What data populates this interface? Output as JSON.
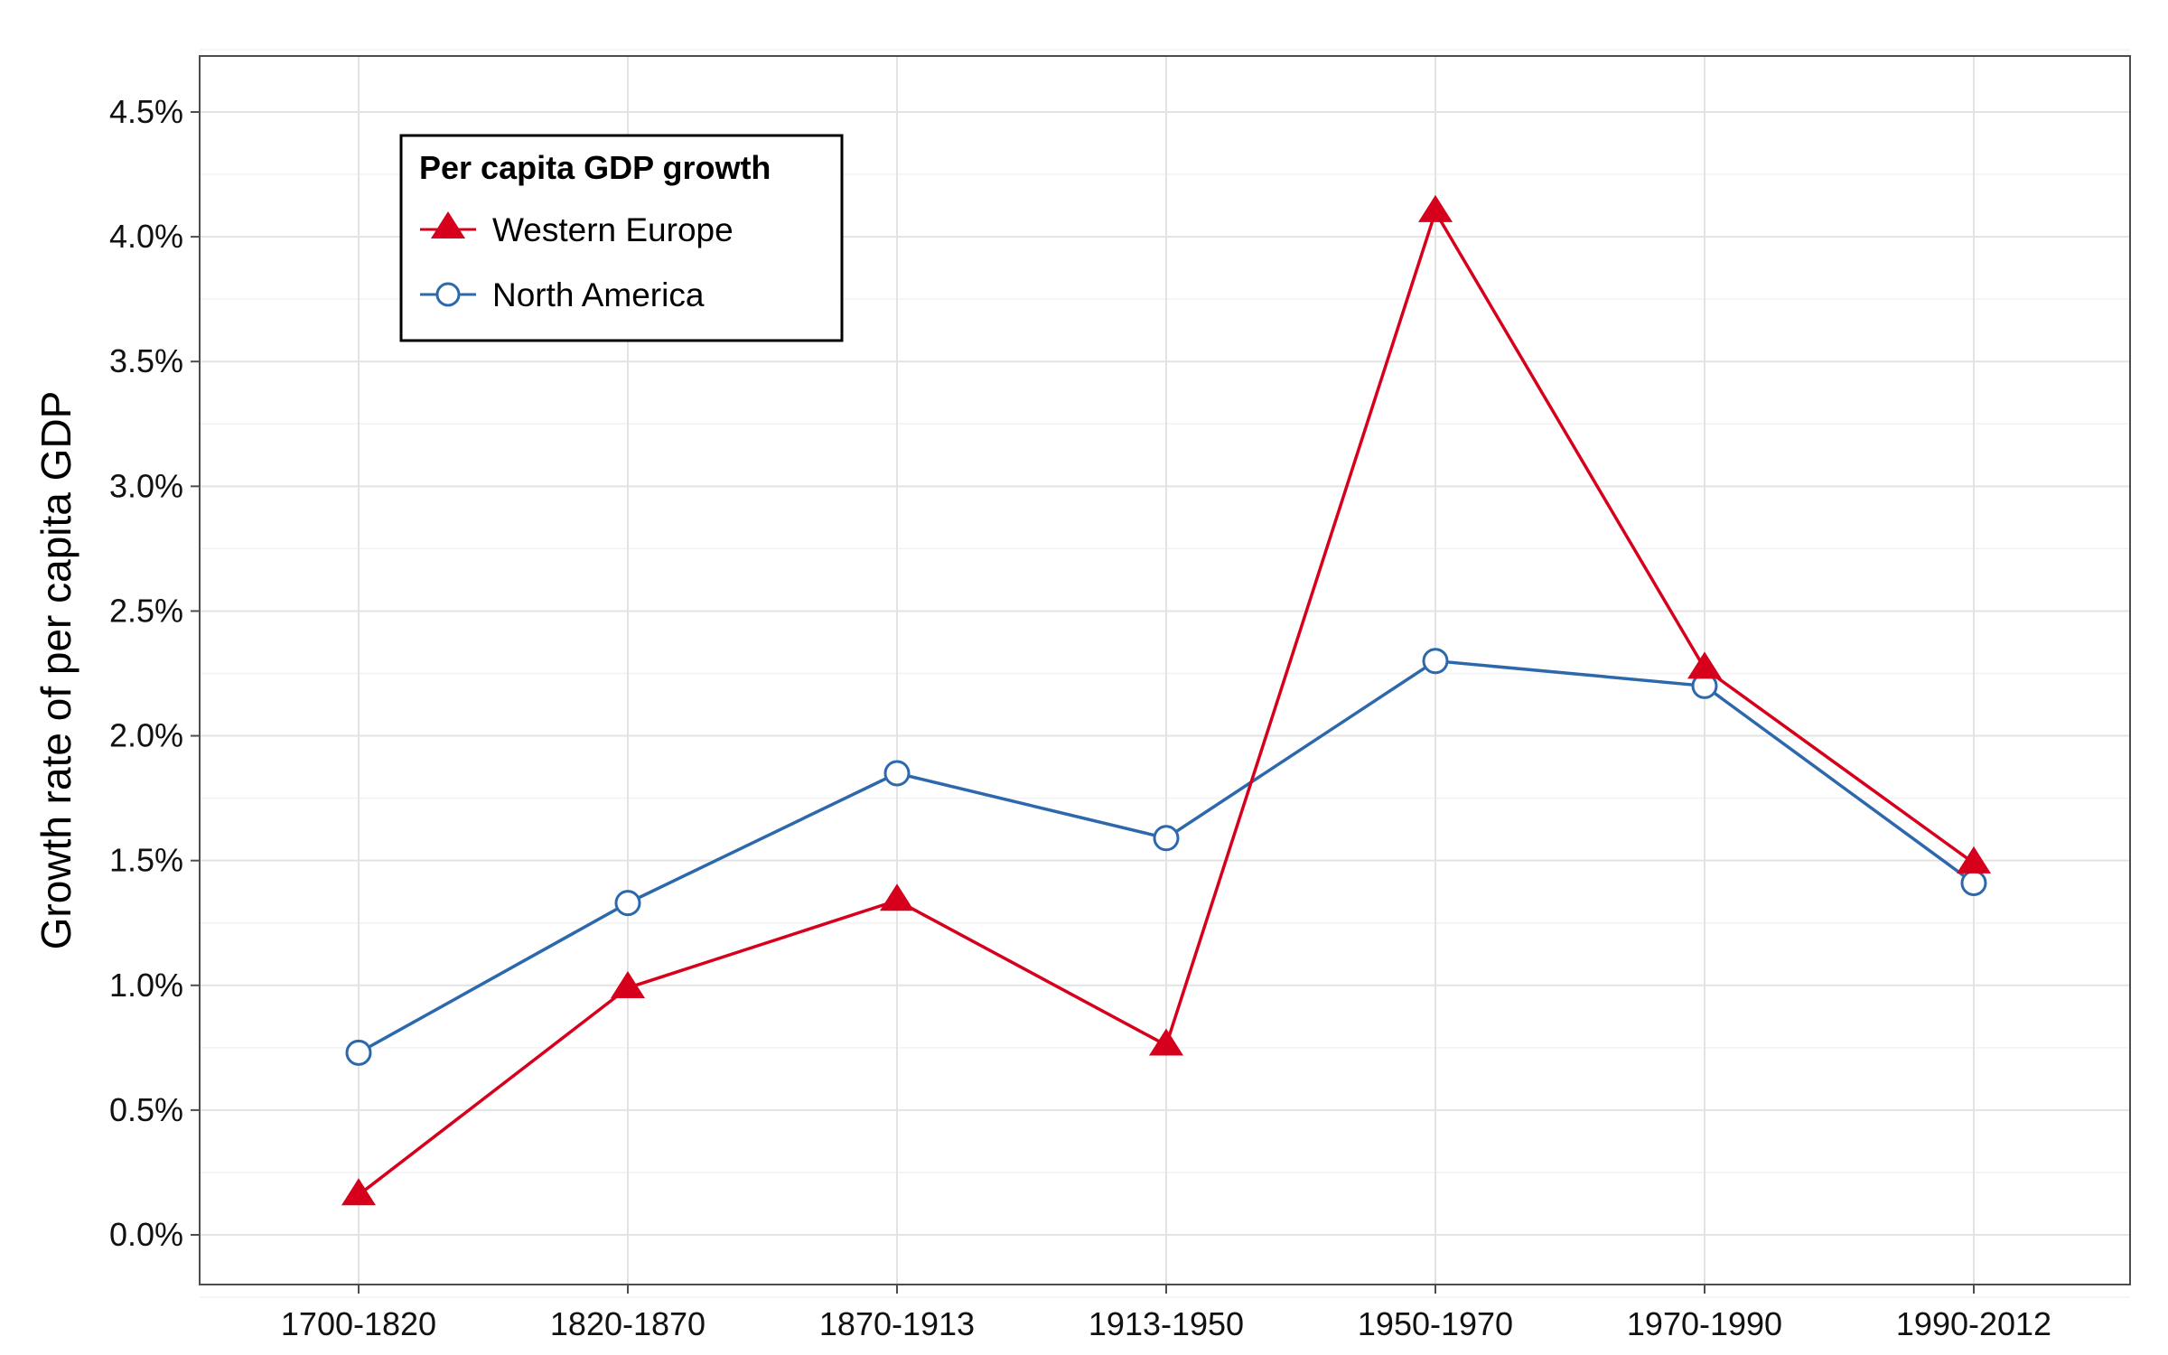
{
  "chart_data": {
    "type": "line",
    "ylabel": "Growth rate of per capita GDP",
    "xlabel": "",
    "categories": [
      "1700-1820",
      "1820-1870",
      "1870-1913",
      "1913-1950",
      "1950-1970",
      "1970-1990",
      "1990-2012"
    ],
    "ylim": [
      -0.22,
      4.72
    ],
    "yticks": [
      0.0,
      0.5,
      1.0,
      1.5,
      2.0,
      2.5,
      3.0,
      3.5,
      4.0,
      4.5
    ],
    "ytick_labels": [
      "0.0%",
      "0.5%",
      "1.0%",
      "1.5%",
      "2.0%",
      "2.5%",
      "3.0%",
      "3.5%",
      "4.0%",
      "4.5%"
    ],
    "grid": true,
    "legend": {
      "title": "Per capita GDP growth",
      "placement": "top-left"
    },
    "series": [
      {
        "name": "Western Europe",
        "marker": "filled-triangle",
        "color": "#d7001c",
        "values": [
          0.16,
          0.99,
          1.34,
          0.76,
          4.1,
          2.27,
          1.49
        ]
      },
      {
        "name": "North America",
        "marker": "open-circle",
        "color": "#2c68ab",
        "values": [
          0.73,
          1.33,
          1.85,
          1.59,
          2.3,
          2.2,
          1.41
        ]
      }
    ]
  }
}
